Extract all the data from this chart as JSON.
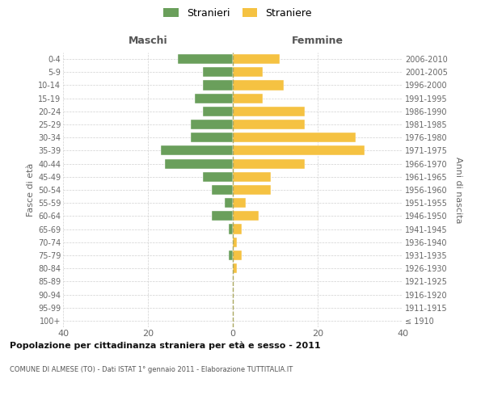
{
  "age_groups": [
    "100+",
    "95-99",
    "90-94",
    "85-89",
    "80-84",
    "75-79",
    "70-74",
    "65-69",
    "60-64",
    "55-59",
    "50-54",
    "45-49",
    "40-44",
    "35-39",
    "30-34",
    "25-29",
    "20-24",
    "15-19",
    "10-14",
    "5-9",
    "0-4"
  ],
  "birth_years": [
    "≤ 1910",
    "1911-1915",
    "1916-1920",
    "1921-1925",
    "1926-1930",
    "1931-1935",
    "1936-1940",
    "1941-1945",
    "1946-1950",
    "1951-1955",
    "1956-1960",
    "1961-1965",
    "1966-1970",
    "1971-1975",
    "1976-1980",
    "1981-1985",
    "1986-1990",
    "1991-1995",
    "1996-2000",
    "2001-2005",
    "2006-2010"
  ],
  "maschi": [
    0,
    0,
    0,
    0,
    0,
    1,
    0,
    1,
    5,
    2,
    5,
    7,
    16,
    17,
    10,
    10,
    7,
    9,
    7,
    7,
    13
  ],
  "femmine": [
    0,
    0,
    0,
    0,
    1,
    2,
    1,
    2,
    6,
    3,
    9,
    9,
    17,
    31,
    29,
    17,
    17,
    7,
    12,
    7,
    11
  ],
  "male_color": "#6a9f5b",
  "female_color": "#f5c242",
  "background_color": "#ffffff",
  "grid_color": "#cccccc",
  "title": "Popolazione per cittadinanza straniera per età e sesso - 2011",
  "subtitle": "COMUNE DI ALMESE (TO) - Dati ISTAT 1° gennaio 2011 - Elaborazione TUTTITALIA.IT",
  "xlabel_left": "Maschi",
  "xlabel_right": "Femmine",
  "ylabel_left": "Fasce di età",
  "ylabel_right": "Anni di nascita",
  "legend_male": "Stranieri",
  "legend_female": "Straniere",
  "xlim": 40,
  "bar_height": 0.75
}
